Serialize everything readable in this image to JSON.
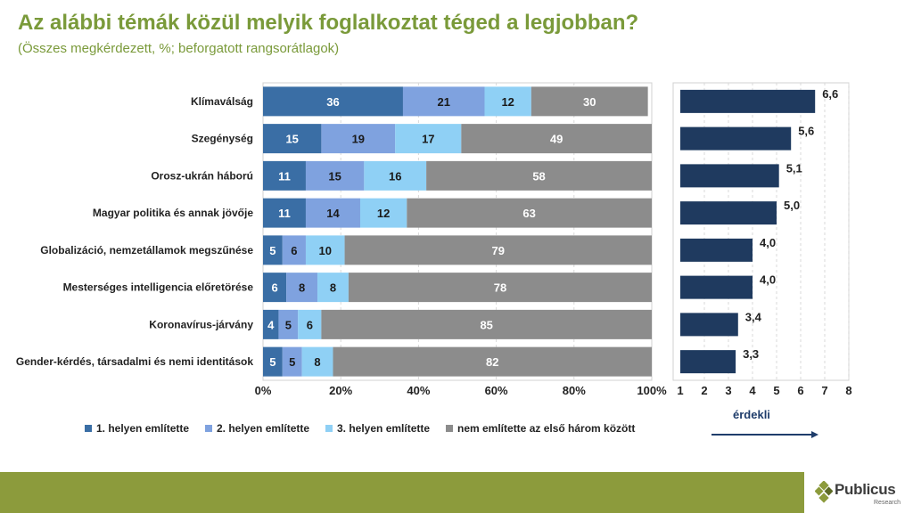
{
  "title": "Az alábbi témák közül melyik foglalkoztat téged a legjobban?",
  "subtitle": "(Összes megkérdezett, %; beforgatott rangsorátlagok)",
  "logo": {
    "name": "Publicus",
    "tagline": "Research"
  },
  "chart_data": [
    {
      "type": "bar",
      "stacked": true,
      "orientation": "horizontal",
      "title": "",
      "categories": [
        "Klímaválság",
        "Szegénység",
        "Orosz-ukrán háború",
        "Magyar politika és annak jövője",
        "Globalizáció, nemzetállamok megszűnése",
        "Mesterséges intelligencia előretörése",
        "Koronavírus-járvány",
        "Gender-kérdés, társadalmi és nemi identitások"
      ],
      "series": [
        {
          "name": "1. helyen említette",
          "color": "#3a6ea5",
          "values": [
            36,
            15,
            11,
            11,
            5,
            6,
            4,
            5
          ]
        },
        {
          "name": "2. helyen említette",
          "color": "#7fa2df",
          "values": [
            21,
            19,
            15,
            14,
            6,
            8,
            5,
            5
          ]
        },
        {
          "name": "3. helyen említette",
          "color": "#8fd0f5",
          "values": [
            12,
            17,
            16,
            12,
            10,
            8,
            6,
            8
          ]
        },
        {
          "name": "nem említette az első három között",
          "color": "#8c8c8c",
          "values": [
            30,
            49,
            58,
            63,
            79,
            78,
            85,
            82
          ]
        }
      ],
      "xlim": [
        0,
        100
      ],
      "xticks": [
        "0%",
        "20%",
        "40%",
        "60%",
        "80%",
        "100%"
      ],
      "legend": "bottom",
      "grid": true
    },
    {
      "type": "bar",
      "orientation": "horizontal",
      "categories": [
        "Klímaválság",
        "Szegénység",
        "Orosz-ukrán háború",
        "Magyar politika és annak jövője",
        "Globalizáció, nemzetállamok megszűnése",
        "Mesterséges intelligencia előretörése",
        "Koronavírus-járvány",
        "Gender-kérdés, társadalmi és nemi identitások"
      ],
      "values": [
        6.6,
        5.6,
        5.1,
        5.0,
        4.0,
        4.0,
        3.4,
        3.3
      ],
      "value_labels": [
        "6,6",
        "5,6",
        "5,1",
        "5,0",
        "4,0",
        "4,0",
        "3,4",
        "3,3"
      ],
      "color": "#1f3a5f",
      "xlim": [
        1,
        8
      ],
      "xticks": [
        "1",
        "2",
        "3",
        "4",
        "5",
        "6",
        "7",
        "8"
      ],
      "xlabel": "érdekli",
      "grid": true
    }
  ]
}
